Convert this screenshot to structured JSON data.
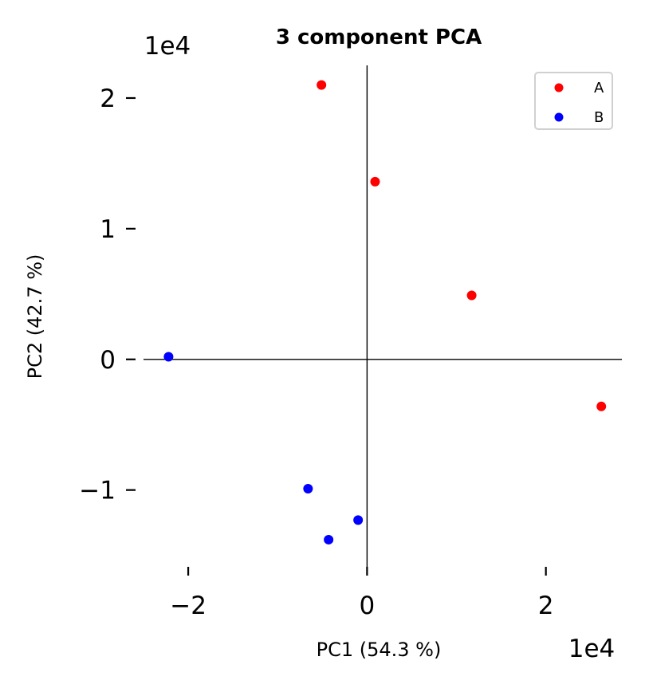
{
  "chart_data": {
    "type": "scatter",
    "title": "3 component PCA",
    "xlabel": "PC1 (54.3 %)",
    "ylabel": "PC2 (42.7 %)",
    "x_offset_label": "1e4",
    "y_offset_label": "1e4",
    "xlim": [
      -2.5,
      2.85
    ],
    "ylim": [
      -1.6,
      2.25
    ],
    "x_ticks": [
      {
        "value": -2,
        "label": "−2"
      },
      {
        "value": 0,
        "label": "0"
      },
      {
        "value": 2,
        "label": "2"
      }
    ],
    "y_ticks": [
      {
        "value": -1,
        "label": "−1"
      },
      {
        "value": 0,
        "label": "0"
      },
      {
        "value": 1,
        "label": "1"
      },
      {
        "value": 2,
        "label": "2"
      }
    ],
    "grid": false,
    "legend_position": "top-right",
    "series": [
      {
        "name": "A",
        "color": "#ff0000",
        "points": [
          [
            -0.51,
            2.1
          ],
          [
            0.09,
            1.36
          ],
          [
            1.17,
            0.49
          ],
          [
            2.62,
            -0.36
          ]
        ]
      },
      {
        "name": "B",
        "color": "#0000ff",
        "points": [
          [
            -2.22,
            0.02
          ],
          [
            -0.66,
            -0.99
          ],
          [
            -0.43,
            -1.38
          ],
          [
            -0.1,
            -1.23
          ]
        ]
      }
    ]
  }
}
